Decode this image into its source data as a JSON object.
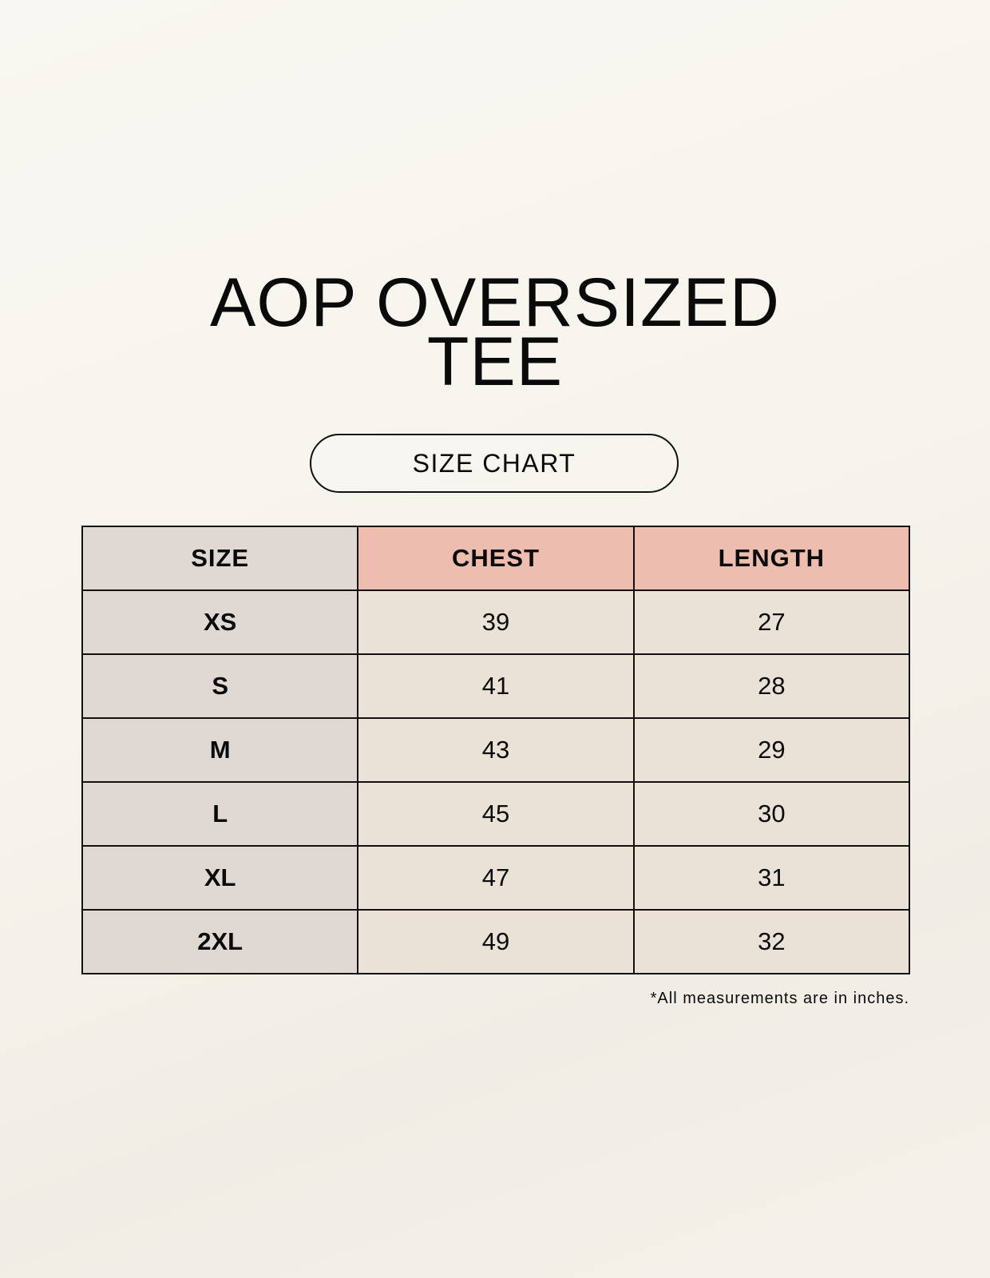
{
  "title_line1": "AOP OVERSIZED",
  "title_line2": "TEE",
  "badge": "SIZE CHART",
  "table": {
    "headers": [
      "SIZE",
      "CHEST",
      "LENGTH"
    ],
    "rows": [
      [
        "XS",
        "39",
        "27"
      ],
      [
        "S",
        "41",
        "28"
      ],
      [
        "M",
        "43",
        "29"
      ],
      [
        "L",
        "45",
        "30"
      ],
      [
        "XL",
        "47",
        "31"
      ],
      [
        "2XL",
        "49",
        "32"
      ]
    ]
  },
  "footnote": "*All measurements are in inches.",
  "colors": {
    "size_column": "#e0d8d3",
    "header_accent": "#edbdaf",
    "value_cells": "#eae2d7"
  }
}
